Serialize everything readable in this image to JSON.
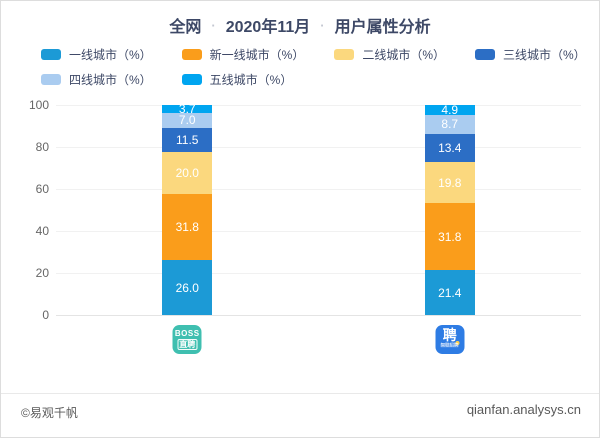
{
  "header": {
    "title_parts": [
      "全网",
      "2020年11月",
      "用户属性分析"
    ],
    "separator": "·"
  },
  "chart_data": {
    "type": "bar",
    "stacked": true,
    "title": "全网 · 2020年11月 · 用户属性分析",
    "categories": [
      "BOSS直聘",
      "智联招聘"
    ],
    "series": [
      {
        "name": "一线城市（%）",
        "color": "#1C9AD6",
        "values": [
          26.0,
          21.4
        ]
      },
      {
        "name": "新一线城市（%）",
        "color": "#FA9D1B",
        "values": [
          31.8,
          31.8
        ]
      },
      {
        "name": "二线城市（%）",
        "color": "#FBD87E",
        "values": [
          20.0,
          19.8
        ]
      },
      {
        "name": "三线城市（%）",
        "color": "#2C6EC5",
        "values": [
          11.5,
          13.4
        ]
      },
      {
        "name": "四线城市（%）",
        "color": "#AACCF0",
        "values": [
          7.0,
          8.7
        ]
      },
      {
        "name": "五线城市（%）",
        "color": "#00A5F0",
        "values": [
          3.7,
          4.9
        ]
      }
    ],
    "ylim": [
      0,
      100
    ],
    "yticks": [
      0,
      20,
      40,
      60,
      80,
      100
    ],
    "grid": true,
    "legend_position": "top-left",
    "value_decimals": 1
  },
  "logos": [
    {
      "name": "BOSS直聘",
      "bg": "#3FBFB0",
      "line1": "BOSS",
      "line2": "直聘"
    },
    {
      "name": "智联招聘",
      "bg": "#2E7CE4",
      "glyph": "聘",
      "sub": "智联招聘",
      "accent": "#FFD04A"
    }
  ],
  "footer": {
    "copyright": "©易观千帆",
    "site": "qianfan.analysys.cn"
  }
}
